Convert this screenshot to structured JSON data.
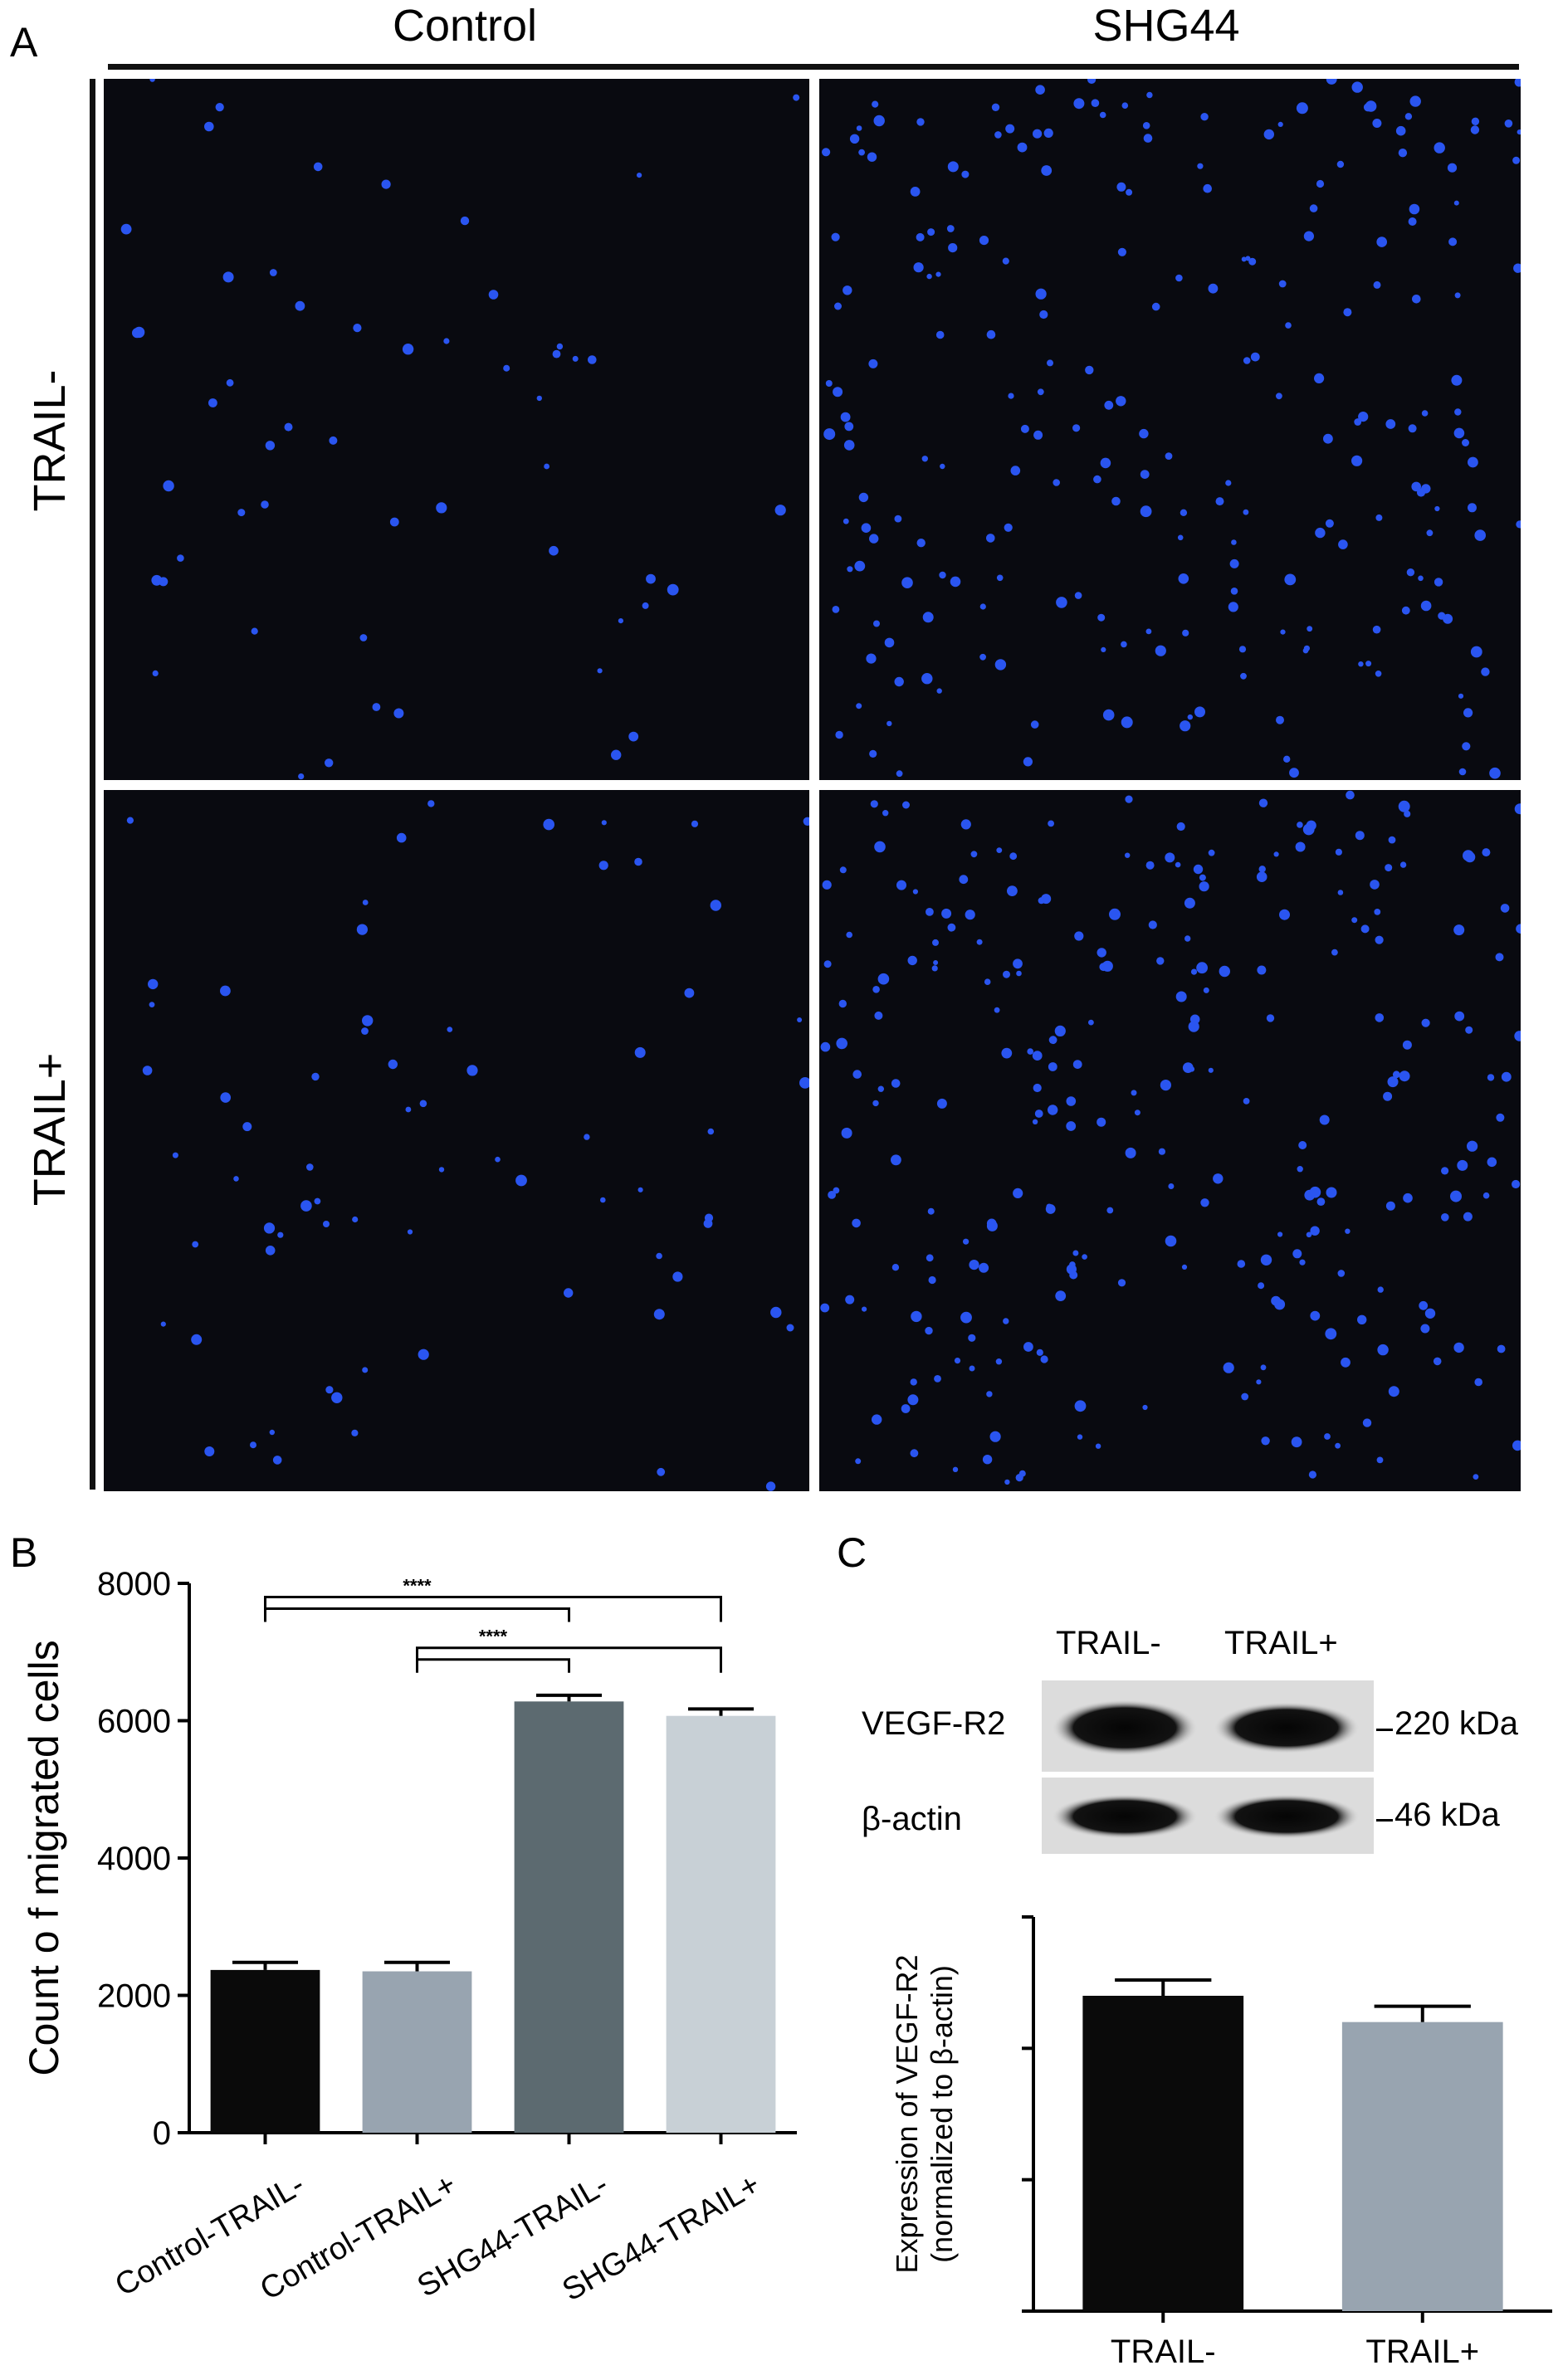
{
  "panels": {
    "a": "A",
    "b": "B",
    "c": "C"
  },
  "micrographs": {
    "columns": [
      "Control",
      "SHG44"
    ],
    "rows": [
      "TRAIL-",
      "TRAIL+"
    ],
    "background_color": "#090a10",
    "nuclei_color": "#2a55f0",
    "cell_density": {
      "control_trail_minus": 55,
      "control_trail_plus": 70,
      "shg44_trail_minus": 230,
      "shg44_trail_plus": 260
    }
  },
  "chart_data": [
    {
      "type": "bar",
      "title": "",
      "ylabel": "Count o f migrated cells",
      "xlabel": "",
      "ylim": [
        0,
        8000
      ],
      "yticks": [
        0,
        2000,
        4000,
        6000,
        8000
      ],
      "categories": [
        "Control-TRAIL-",
        "Control-TRAIL+",
        "SHG44-TRAIL-",
        "SHG44-TRAIL+"
      ],
      "values": [
        2370,
        2350,
        6280,
        6070
      ],
      "errors": [
        110,
        130,
        90,
        100
      ],
      "colors": [
        "#0a0a0a",
        "#98a4b0",
        "#5c6a70",
        "#c8d0d6"
      ],
      "significance": [
        {
          "from": 0,
          "to": [
            2,
            3
          ],
          "label": "****"
        },
        {
          "from": 1,
          "to": [
            2,
            3
          ],
          "label": "****"
        }
      ]
    },
    {
      "type": "bar",
      "title": "",
      "ylabel": "Expression of VEGF-R2",
      "ylabel2": "(normalized to β-actin)",
      "xlabel": "",
      "ylim": [
        0,
        1.5
      ],
      "yticks": [
        0,
        0.5,
        1.0,
        1.5
      ],
      "categories": [
        "TRAIL-",
        "TRAIL+"
      ],
      "values": [
        1.2,
        1.1
      ],
      "errors": [
        0.06,
        0.06
      ],
      "colors": [
        "#0a0a0a",
        "#98a4b0"
      ]
    }
  ],
  "blot": {
    "lanes": [
      "TRAIL-",
      "TRAIL+"
    ],
    "bands": [
      {
        "name": "VEGF-R2",
        "size": "220 kDa"
      },
      {
        "name": "β-actin",
        "size": "46 kDa"
      }
    ]
  }
}
